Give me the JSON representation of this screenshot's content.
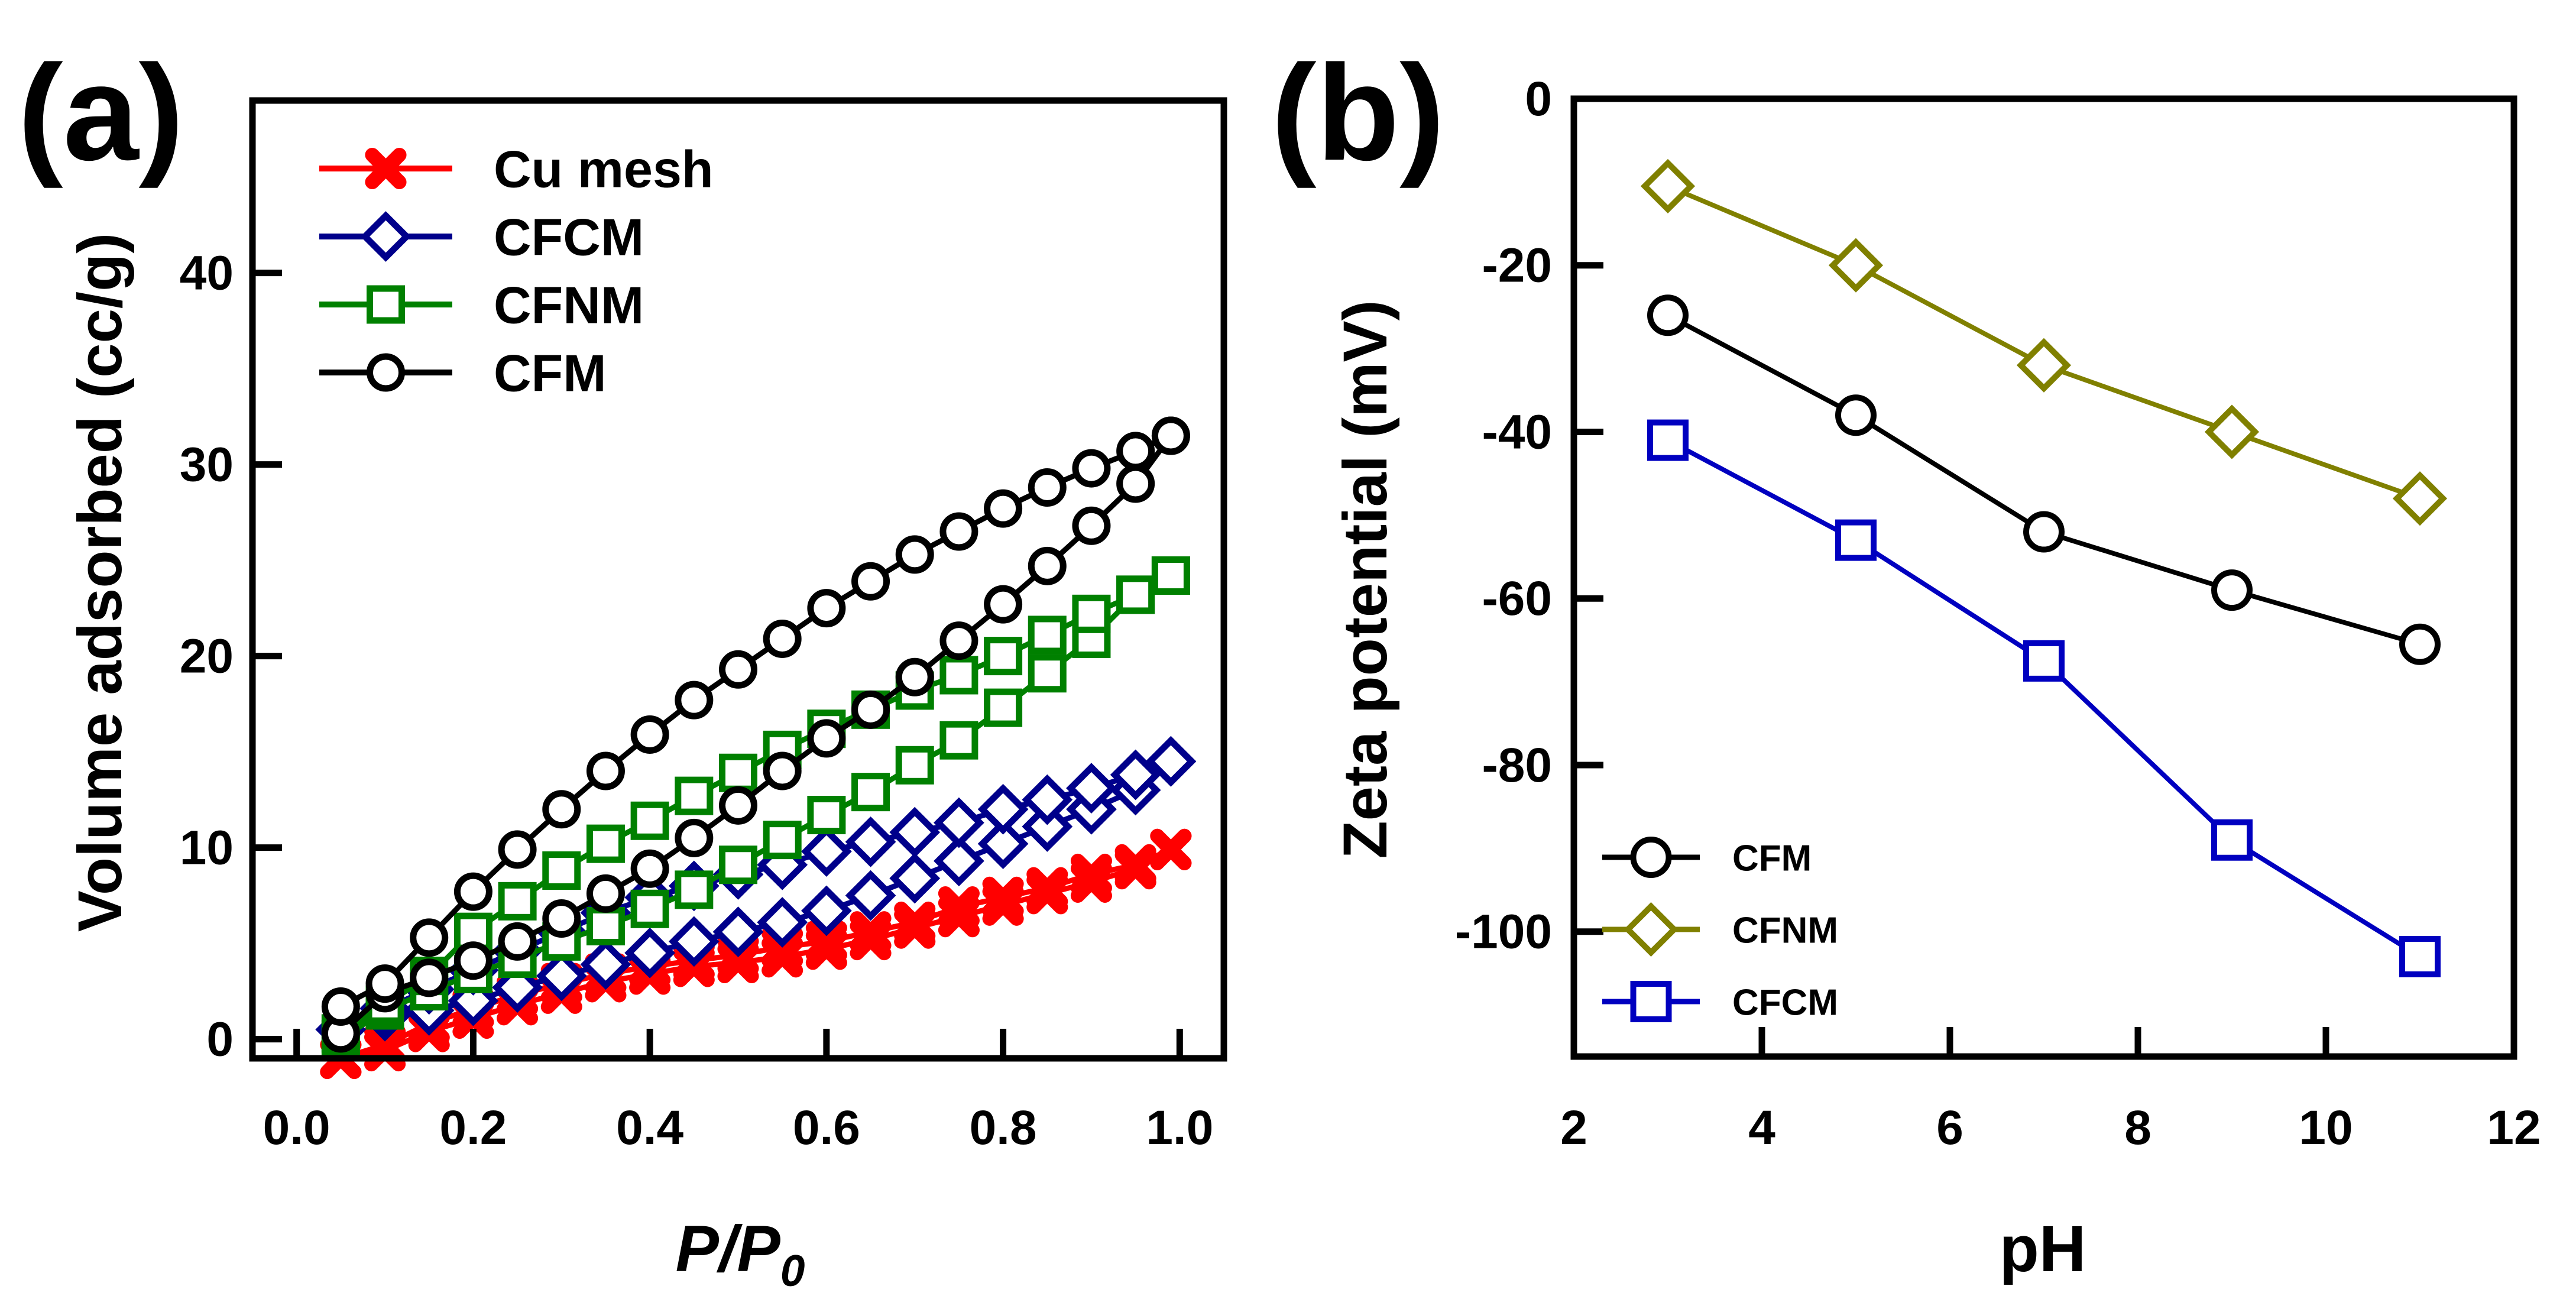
{
  "chart_data": [
    {
      "panel_label": "(a)",
      "type": "line",
      "xlabel": "P/P",
      "xlabel_subscript": "0",
      "ylabel": "Volume adsorbed (cc/g)",
      "xlim": [
        -0.05,
        1.05
      ],
      "ylim": [
        -1,
        49
      ],
      "xticks": [
        "0.0",
        "0.2",
        "0.4",
        "0.6",
        "0.8",
        "1.0"
      ],
      "yticks": [
        "0",
        "10",
        "20",
        "30",
        "40"
      ],
      "grid": false,
      "legend_position": "top-left",
      "series": [
        {
          "name": "Cu mesh",
          "color": "#ff0000",
          "marker": "x",
          "x": [
            0.05,
            0.1,
            0.15,
            0.2,
            0.25,
            0.3,
            0.35,
            0.4,
            0.45,
            0.5,
            0.55,
            0.6,
            0.65,
            0.7,
            0.75,
            0.8,
            0.85,
            0.9,
            0.95,
            0.99
          ],
          "branches": [
            [
              -1.0,
              -0.6,
              0.4,
              1.1,
              1.8,
              2.4,
              3.0,
              3.4,
              3.8,
              4.0,
              4.3,
              4.7,
              5.2,
              5.8,
              6.4,
              7.0,
              7.6,
              8.2,
              8.9,
              9.9
            ],
            [
              -1.0,
              -0.3,
              0.8,
              1.6,
              2.3,
              2.9,
              3.4,
              3.8,
              4.1,
              4.4,
              4.8,
              5.1,
              5.6,
              6.1,
              6.9,
              7.4,
              7.9,
              8.6,
              9.1,
              9.9
            ]
          ]
        },
        {
          "name": "CFCM",
          "color": "#00008b",
          "marker": "diamond",
          "x": [
            0.05,
            0.1,
            0.15,
            0.2,
            0.25,
            0.3,
            0.35,
            0.4,
            0.45,
            0.5,
            0.55,
            0.6,
            0.65,
            0.7,
            0.75,
            0.8,
            0.85,
            0.9,
            0.95,
            0.99
          ],
          "branches": [
            [
              0.5,
              1.2,
              1.5,
              2.0,
              2.7,
              3.3,
              3.9,
              4.5,
              5.1,
              5.6,
              6.1,
              6.7,
              7.5,
              8.4,
              9.3,
              10.2,
              11.1,
              12.0,
              13.0,
              14.5
            ],
            [
              0.5,
              1.6,
              2.6,
              3.6,
              4.6,
              5.6,
              6.6,
              7.4,
              8.0,
              8.6,
              9.1,
              9.8,
              10.3,
              10.8,
              11.3,
              12.0,
              12.5,
              13.1,
              13.8,
              14.5
            ]
          ]
        },
        {
          "name": "CFNM",
          "color": "#008000",
          "marker": "square",
          "x": [
            0.05,
            0.1,
            0.15,
            0.2,
            0.25,
            0.3,
            0.35,
            0.4,
            0.45,
            0.5,
            0.55,
            0.6,
            0.65,
            0.7,
            0.75,
            0.8,
            0.85,
            0.9,
            0.95,
            0.99
          ],
          "branches": [
            [
              0.0,
              1.5,
              2.5,
              3.4,
              4.2,
              5.1,
              5.9,
              6.8,
              7.8,
              9.1,
              10.4,
              11.7,
              12.9,
              14.3,
              15.6,
              17.3,
              19.1,
              20.9,
              23.2,
              24.2
            ],
            [
              0.3,
              1.8,
              3.3,
              5.6,
              7.2,
              8.8,
              10.2,
              11.4,
              12.7,
              13.9,
              15.1,
              16.2,
              17.2,
              18.2,
              19.0,
              20.0,
              21.1,
              22.2,
              23.2,
              24.2
            ]
          ]
        },
        {
          "name": "CFM",
          "color": "#000000",
          "marker": "circle",
          "x": [
            0.05,
            0.1,
            0.15,
            0.2,
            0.25,
            0.3,
            0.35,
            0.4,
            0.45,
            0.5,
            0.55,
            0.6,
            0.65,
            0.7,
            0.75,
            0.8,
            0.85,
            0.9,
            0.95,
            0.99
          ],
          "branches": [
            [
              0.3,
              2.4,
              3.2,
              4.1,
              5.1,
              6.3,
              7.6,
              8.9,
              10.5,
              12.2,
              14.0,
              15.7,
              17.2,
              18.9,
              20.8,
              22.7,
              24.7,
              26.8,
              29.0,
              31.5
            ],
            [
              1.7,
              2.9,
              5.3,
              7.7,
              9.9,
              12.0,
              14.0,
              15.9,
              17.7,
              19.3,
              20.9,
              22.5,
              23.9,
              25.3,
              26.5,
              27.7,
              28.8,
              29.8,
              30.7,
              31.5
            ]
          ]
        }
      ]
    },
    {
      "panel_label": "(b)",
      "type": "line",
      "xlabel": "pH",
      "ylabel": "Zeta potential (mV)",
      "xlim": [
        2,
        12
      ],
      "ylim": [
        -115,
        0
      ],
      "xticks": [
        "2",
        "4",
        "6",
        "8",
        "10",
        "12"
      ],
      "yticks": [
        "0",
        "-20",
        "-40",
        "-60",
        "-80",
        "-100"
      ],
      "grid": false,
      "legend_position": "bottom-left",
      "series": [
        {
          "name": "CFM",
          "color": "#000000",
          "marker": "circle",
          "x": [
            3,
            5,
            7,
            9,
            11
          ],
          "branches": [
            [
              -26,
              -38,
              -52,
              -59,
              -65.5
            ]
          ]
        },
        {
          "name": "CFNM",
          "color": "#808000",
          "marker": "diamond",
          "x": [
            3,
            5,
            7,
            9,
            11
          ],
          "branches": [
            [
              -10.5,
              -20,
              -32,
              -40,
              -48
            ]
          ]
        },
        {
          "name": "CFCM",
          "color": "#0000c0",
          "marker": "square",
          "x": [
            3,
            5,
            7,
            9,
            11
          ],
          "branches": [
            [
              -41,
              -53,
              -67.5,
              -89,
              -103
            ]
          ]
        }
      ]
    }
  ]
}
